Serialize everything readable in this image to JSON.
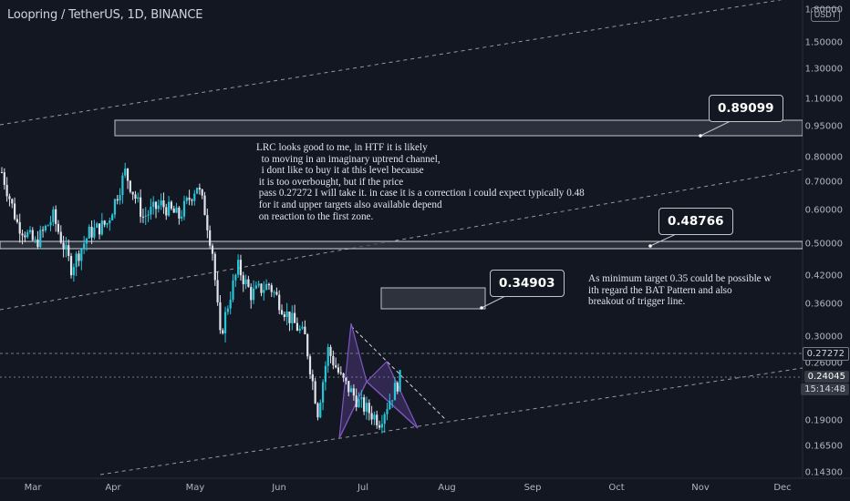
{
  "header": {
    "title": "Loopring / TetherUS, 1D, BINANCE",
    "currency": "USDT"
  },
  "price_axis": {
    "ticks": [
      "1.80000",
      "1.50000",
      "1.30000",
      "1.10000",
      "0.95000",
      "0.80000",
      "0.70000",
      "0.60000",
      "0.50000",
      "0.42000",
      "0.36000",
      "0.30000",
      "0.26000",
      "0.19000",
      "0.16500",
      "0.14300"
    ],
    "tick_values": [
      1.8,
      1.5,
      1.3,
      1.1,
      0.95,
      0.8,
      0.7,
      0.6,
      0.5,
      0.42,
      0.36,
      0.3,
      0.26,
      0.19,
      0.165,
      0.143
    ],
    "scale": "log",
    "last_price": "0.24045",
    "countdown": "15:14:48",
    "trigger_price": "0.27272"
  },
  "time_axis": {
    "ticks": [
      "Mar",
      "Apr",
      "May",
      "Jun",
      "Jul",
      "Aug",
      "Sep",
      "Oct",
      "Nov",
      "Dec"
    ]
  },
  "annotations": {
    "note_main": "LRC looks good to me, in HTF it is likely\n  to moving in an imaginary uptrend channel,\n  i dont like to buy it at this level because\n it is too overbought, but if the price\n pass 0.27272 I will take it. in case it is a correction i could expect typically 0.48\n for it and upper targets also available depend\n on reaction to the first zone.",
    "note_right": "As minimum target 0.35 could be possible w\nith regard the BAT Pattern and also\nbreakout of trigger line.",
    "callouts": [
      {
        "label": "0.89099",
        "value": 0.89099
      },
      {
        "label": "0.48766",
        "value": 0.48766
      },
      {
        "label": "0.34903",
        "value": 0.34903
      }
    ]
  },
  "colors": {
    "background": "#131722",
    "candle_up": "#26c6da",
    "candle_down": "#e0e3eb",
    "zone": "#4a4f5c",
    "bat_pattern": "#7e57c2",
    "axis_text": "#b2b5be"
  },
  "chart_data": {
    "type": "candlestick",
    "title": "Loopring / TetherUS, 1D, BINANCE",
    "scale": "log",
    "ylim": [
      0.143,
      1.85
    ],
    "x_range": [
      "2021-02-23",
      "2021-12-31"
    ],
    "series": [
      {
        "date": [
          "2021-02-23",
          "2021-03-01",
          "2021-03-08",
          "2021-03-15",
          "2021-03-22",
          "2021-03-29",
          "2021-04-05",
          "2021-04-12",
          "2021-04-19",
          "2021-04-26",
          "2021-05-03",
          "2021-05-10",
          "2021-05-13",
          "2021-05-16",
          "2021-05-19",
          "2021-05-23",
          "2021-05-26",
          "2021-05-31",
          "2021-06-07",
          "2021-06-14",
          "2021-06-21",
          "2021-06-26",
          "2021-06-30",
          "2021-07-05",
          "2021-07-12",
          "2021-07-20",
          "2021-07-28"
        ],
        "close": [
          0.74,
          0.56,
          0.5,
          0.58,
          0.44,
          0.53,
          0.56,
          0.74,
          0.58,
          0.62,
          0.58,
          0.69,
          0.6,
          0.48,
          0.3,
          0.38,
          0.44,
          0.38,
          0.4,
          0.34,
          0.3,
          0.2,
          0.28,
          0.24,
          0.21,
          0.19,
          0.24
        ]
      }
    ],
    "zones": [
      {
        "low": 0.87,
        "high": 0.93,
        "from": "2021-04-01",
        "to": "2021-12-31"
      },
      {
        "low": 0.49,
        "high": 0.51,
        "from": "2021-02-23",
        "to": "2021-12-31"
      },
      {
        "low": 0.34,
        "high": 0.38,
        "from": "2021-07-18",
        "to": "2021-08-10"
      }
    ],
    "levels": [
      0.27272,
      0.24045
    ]
  }
}
